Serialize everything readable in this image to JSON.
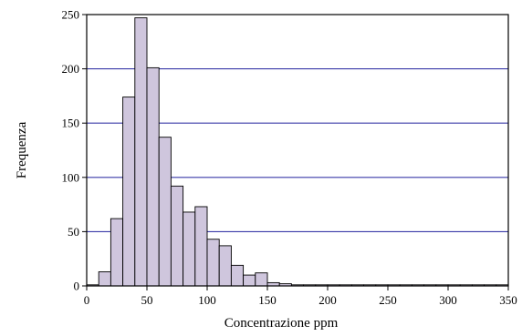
{
  "chart_data": {
    "type": "bar",
    "title": "",
    "xlabel": "Concentrazione  ppm",
    "ylabel": "Frequenza",
    "xlim": [
      0,
      350
    ],
    "ylim": [
      0,
      250
    ],
    "bin_width": 10,
    "x_ticks": [
      0,
      50,
      100,
      150,
      200,
      250,
      300,
      350
    ],
    "y_ticks": [
      0,
      50,
      100,
      150,
      200,
      250
    ],
    "grid": "horizontal",
    "bar_color": "#cfc6dd",
    "bins": [
      {
        "x": 0,
        "value": 1
      },
      {
        "x": 10,
        "value": 13
      },
      {
        "x": 20,
        "value": 62
      },
      {
        "x": 30,
        "value": 174
      },
      {
        "x": 40,
        "value": 247
      },
      {
        "x": 50,
        "value": 201
      },
      {
        "x": 60,
        "value": 137
      },
      {
        "x": 70,
        "value": 92
      },
      {
        "x": 80,
        "value": 68
      },
      {
        "x": 90,
        "value": 73
      },
      {
        "x": 100,
        "value": 43
      },
      {
        "x": 110,
        "value": 37
      },
      {
        "x": 120,
        "value": 19
      },
      {
        "x": 130,
        "value": 10
      },
      {
        "x": 140,
        "value": 12
      },
      {
        "x": 150,
        "value": 3
      },
      {
        "x": 160,
        "value": 2
      },
      {
        "x": 170,
        "value": 1
      },
      {
        "x": 180,
        "value": 1
      },
      {
        "x": 190,
        "value": 1
      },
      {
        "x": 200,
        "value": 1
      },
      {
        "x": 210,
        "value": 1
      },
      {
        "x": 220,
        "value": 1
      },
      {
        "x": 230,
        "value": 1
      },
      {
        "x": 240,
        "value": 1
      },
      {
        "x": 250,
        "value": 1
      },
      {
        "x": 260,
        "value": 1
      },
      {
        "x": 270,
        "value": 1
      },
      {
        "x": 280,
        "value": 1
      },
      {
        "x": 290,
        "value": 1
      },
      {
        "x": 300,
        "value": 1
      },
      {
        "x": 310,
        "value": 1
      },
      {
        "x": 320,
        "value": 1
      },
      {
        "x": 330,
        "value": 1
      },
      {
        "x": 340,
        "value": 1
      }
    ]
  }
}
